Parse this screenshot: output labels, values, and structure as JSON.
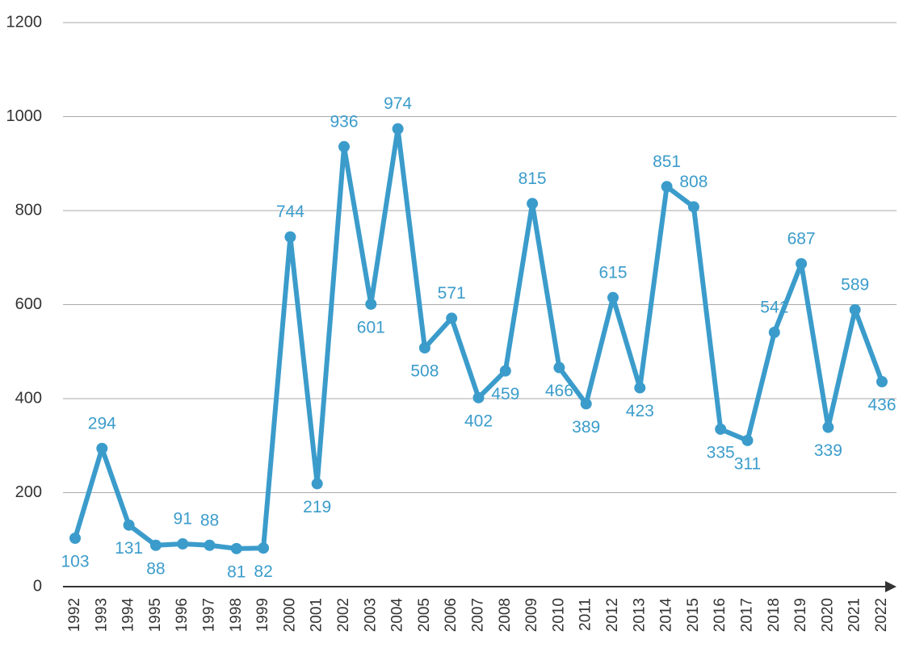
{
  "chart_data": {
    "type": "line",
    "categories": [
      "1992",
      "1993",
      "1994",
      "1995",
      "1996",
      "1997",
      "1998",
      "1999",
      "2000",
      "2001",
      "2002",
      "2003",
      "2004",
      "2005",
      "2006",
      "2007",
      "2008",
      "2009",
      "2010",
      "2011",
      "2012",
      "2013",
      "2014",
      "2015",
      "2016",
      "2017",
      "2018",
      "2019",
      "2020",
      "2021",
      "2022"
    ],
    "values": [
      103,
      294,
      131,
      88,
      91,
      88,
      81,
      82,
      744,
      219,
      936,
      601,
      974,
      508,
      571,
      402,
      459,
      815,
      466,
      389,
      615,
      423,
      851,
      808,
      335,
      311,
      541,
      687,
      339,
      589,
      436
    ],
    "color": "#3b9ccb",
    "ylim": [
      0,
      1200
    ],
    "yticks": [
      0,
      200,
      400,
      600,
      800,
      1000,
      1200
    ],
    "grid": true
  }
}
